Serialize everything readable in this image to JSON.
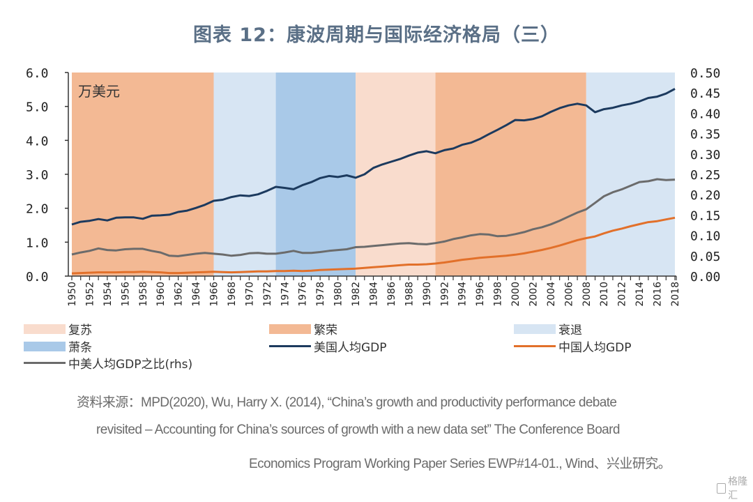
{
  "title": "图表 12：康波周期与国际经济格局（三）",
  "chart_data": {
    "type": "line",
    "title": "图表 12：康波周期与国际经济格局（三）",
    "ylabel_left": "万美元",
    "ylim_left": [
      0,
      6
    ],
    "ylim_right": [
      0,
      0.5
    ],
    "yticks_left": [
      "0.0",
      "1.0",
      "2.0",
      "3.0",
      "4.0",
      "5.0",
      "6.0"
    ],
    "yticks_right": [
      "0.00",
      "0.05",
      "0.10",
      "0.15",
      "0.20",
      "0.25",
      "0.30",
      "0.35",
      "0.40",
      "0.45",
      "0.50"
    ],
    "xlim": [
      1950,
      2018
    ],
    "xticks": [
      "1950",
      "1952",
      "1954",
      "1956",
      "1958",
      "1960",
      "1962",
      "1964",
      "1966",
      "1968",
      "1970",
      "1972",
      "1974",
      "1976",
      "1978",
      "1980",
      "1982",
      "1984",
      "1986",
      "1988",
      "1990",
      "1992",
      "1994",
      "1996",
      "1998",
      "2000",
      "2002",
      "2004",
      "2006",
      "2008",
      "2010",
      "2012",
      "2014",
      "2016",
      "2018"
    ],
    "x": [
      1950,
      1951,
      1952,
      1953,
      1954,
      1955,
      1956,
      1957,
      1958,
      1959,
      1960,
      1961,
      1962,
      1963,
      1964,
      1965,
      1966,
      1967,
      1968,
      1969,
      1970,
      1971,
      1972,
      1973,
      1974,
      1975,
      1976,
      1977,
      1978,
      1979,
      1980,
      1981,
      1982,
      1983,
      1984,
      1985,
      1986,
      1987,
      1988,
      1989,
      1990,
      1991,
      1992,
      1993,
      1994,
      1995,
      1996,
      1997,
      1998,
      1999,
      2000,
      2001,
      2002,
      2003,
      2004,
      2005,
      2006,
      2007,
      2008,
      2009,
      2010,
      2011,
      2012,
      2013,
      2014,
      2015,
      2016,
      2017,
      2018
    ],
    "bands": [
      {
        "phase": "繁荣",
        "start": 1950,
        "end": 1966
      },
      {
        "phase": "衰退",
        "start": 1966,
        "end": 1973
      },
      {
        "phase": "萧条",
        "start": 1973,
        "end": 1982
      },
      {
        "phase": "复苏",
        "start": 1982,
        "end": 1991
      },
      {
        "phase": "繁荣",
        "start": 1991,
        "end": 2008
      },
      {
        "phase": "衰退",
        "start": 2008,
        "end": 2018
      }
    ],
    "band_colors": {
      "复苏": "#f9dccd",
      "繁荣": "#f3b994",
      "衰退": "#d7e5f3",
      "萧条": "#a9c9e8"
    },
    "series": [
      {
        "name": "美国人均GDP",
        "axis": "left",
        "color": "#1c3a5e",
        "values": [
          1.52,
          1.6,
          1.63,
          1.68,
          1.64,
          1.72,
          1.73,
          1.73,
          1.69,
          1.78,
          1.79,
          1.81,
          1.89,
          1.93,
          2.01,
          2.1,
          2.22,
          2.25,
          2.33,
          2.38,
          2.36,
          2.41,
          2.51,
          2.63,
          2.6,
          2.56,
          2.68,
          2.77,
          2.89,
          2.95,
          2.92,
          2.97,
          2.9,
          3.0,
          3.19,
          3.29,
          3.37,
          3.45,
          3.55,
          3.64,
          3.68,
          3.62,
          3.71,
          3.76,
          3.87,
          3.93,
          4.04,
          4.18,
          4.31,
          4.45,
          4.6,
          4.59,
          4.63,
          4.71,
          4.84,
          4.95,
          5.03,
          5.08,
          5.03,
          4.83,
          4.92,
          4.96,
          5.03,
          5.08,
          5.15,
          5.25,
          5.29,
          5.38,
          5.52
        ]
      },
      {
        "name": "中国人均GDP",
        "axis": "left",
        "color": "#e2702a",
        "values": [
          0.08,
          0.09,
          0.1,
          0.11,
          0.11,
          0.11,
          0.12,
          0.12,
          0.13,
          0.12,
          0.11,
          0.09,
          0.09,
          0.1,
          0.11,
          0.12,
          0.13,
          0.12,
          0.11,
          0.12,
          0.13,
          0.14,
          0.14,
          0.15,
          0.15,
          0.16,
          0.15,
          0.16,
          0.18,
          0.19,
          0.2,
          0.21,
          0.22,
          0.24,
          0.26,
          0.28,
          0.3,
          0.32,
          0.34,
          0.34,
          0.35,
          0.37,
          0.4,
          0.44,
          0.48,
          0.51,
          0.54,
          0.56,
          0.58,
          0.6,
          0.63,
          0.67,
          0.72,
          0.77,
          0.83,
          0.9,
          0.98,
          1.06,
          1.12,
          1.17,
          1.26,
          1.34,
          1.4,
          1.47,
          1.53,
          1.59,
          1.62,
          1.67,
          1.72
        ]
      },
      {
        "name": "中美人均GDP之比(rhs)",
        "axis": "right",
        "color": "#6b6b6b",
        "values": [
          0.053,
          0.058,
          0.062,
          0.068,
          0.064,
          0.063,
          0.066,
          0.067,
          0.067,
          0.062,
          0.058,
          0.05,
          0.049,
          0.052,
          0.055,
          0.057,
          0.055,
          0.053,
          0.05,
          0.052,
          0.056,
          0.057,
          0.055,
          0.055,
          0.058,
          0.062,
          0.057,
          0.057,
          0.059,
          0.062,
          0.064,
          0.066,
          0.071,
          0.072,
          0.074,
          0.076,
          0.078,
          0.08,
          0.081,
          0.079,
          0.078,
          0.081,
          0.085,
          0.091,
          0.095,
          0.1,
          0.103,
          0.102,
          0.098,
          0.099,
          0.103,
          0.108,
          0.115,
          0.12,
          0.127,
          0.136,
          0.146,
          0.156,
          0.164,
          0.18,
          0.196,
          0.206,
          0.213,
          0.222,
          0.231,
          0.233,
          0.238,
          0.236,
          0.237
        ]
      }
    ],
    "legend": [
      {
        "label": "复苏",
        "kind": "area",
        "color": "#f9dccd"
      },
      {
        "label": "繁荣",
        "kind": "area",
        "color": "#f3b994"
      },
      {
        "label": "衰退",
        "kind": "area",
        "color": "#d7e5f3"
      },
      {
        "label": "萧条",
        "kind": "area",
        "color": "#a9c9e8"
      },
      {
        "label": "美国人均GDP",
        "kind": "line",
        "color": "#1c3a5e"
      },
      {
        "label": "中国人均GDP",
        "kind": "line",
        "color": "#e2702a"
      },
      {
        "label": "中美人均GDP之比(rhs)",
        "kind": "line",
        "color": "#6b6b6b"
      }
    ],
    "legend_position": "bottom",
    "grid": false
  },
  "source": {
    "line1": "资料来源：MPD(2020), Wu, Harry X. (2014), “China’s growth and productivity performance debate",
    "line2": "revisited – Accounting for China’s sources of growth with a new data set” The Conference Board",
    "line3": "Economics Program Working Paper Series EWP#14-01., Wind、兴业研究。"
  },
  "watermark": "格隆汇"
}
